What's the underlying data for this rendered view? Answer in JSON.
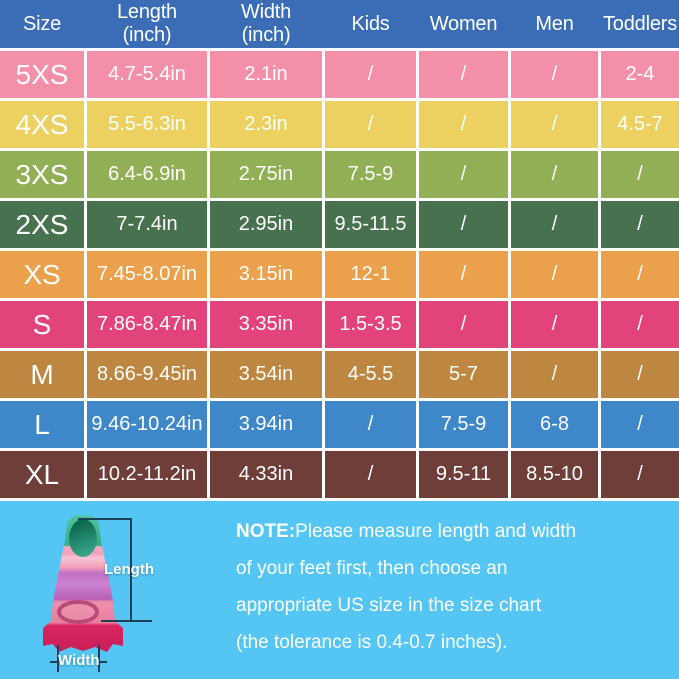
{
  "colors": {
    "header_bg": "#3A6DB6",
    "separator": "#FFFFFF",
    "bottom_bg": "#55C6F3",
    "text": "#FFFFFF"
  },
  "table": {
    "headers": [
      "Size",
      "Length\n(inch)",
      "Width\n(inch)",
      "Kids",
      "Women",
      "Men",
      "Toddlers"
    ],
    "header_keys": [
      "size",
      "length",
      "width",
      "kids",
      "women",
      "men",
      "toddlers"
    ],
    "rows": [
      {
        "size": "5XS",
        "color": "#F48FA9",
        "cells": [
          "4.7-5.4in",
          "2.1in",
          "/",
          "/",
          "/",
          "2-4"
        ]
      },
      {
        "size": "4XS",
        "color": "#EDD160",
        "cells": [
          "5.5-6.3in",
          "2.3in",
          "/",
          "/",
          "/",
          "4.5-7"
        ]
      },
      {
        "size": "3XS",
        "color": "#92AF55",
        "cells": [
          "6.4-6.9in",
          "2.75in",
          "7.5-9",
          "/",
          "/",
          "/"
        ]
      },
      {
        "size": "2XS",
        "color": "#48714F",
        "cells": [
          "7-7.4in",
          "2.95in",
          "9.5-11.5",
          "/",
          "/",
          "/"
        ]
      },
      {
        "size": "XS",
        "color": "#EBA04B",
        "cells": [
          "7.45-8.07in",
          "3.15in",
          "12-1",
          "/",
          "/",
          "/"
        ]
      },
      {
        "size": "S",
        "color": "#E2437B",
        "cells": [
          "7.86-8.47in",
          "3.35in",
          "1.5-3.5",
          "/",
          "/",
          "/"
        ]
      },
      {
        "size": "M",
        "color": "#BD8742",
        "cells": [
          "8.66-9.45in",
          "3.54in",
          "4-5.5",
          "5-7",
          "/",
          "/"
        ]
      },
      {
        "size": "L",
        "color": "#3E87C9",
        "cells": [
          "9.46-10.24in",
          "3.94in",
          "/",
          "7.5-9",
          "6-8",
          "/"
        ]
      },
      {
        "size": "XL",
        "color": "#6F3E39",
        "cells": [
          "10.2-11.2in",
          "4.33in",
          "/",
          "9.5-11",
          "8.5-10",
          "/"
        ]
      }
    ]
  },
  "chart_data": {
    "type": "table",
    "title": "Swim fin size chart",
    "columns": [
      "Size",
      "Length (inch)",
      "Width (inch)",
      "Kids",
      "Women",
      "Men",
      "Toddlers"
    ],
    "rows": [
      [
        "5XS",
        "4.7-5.4in",
        "2.1in",
        "/",
        "/",
        "/",
        "2-4"
      ],
      [
        "4XS",
        "5.5-6.3in",
        "2.3in",
        "/",
        "/",
        "/",
        "4.5-7"
      ],
      [
        "3XS",
        "6.4-6.9in",
        "2.75in",
        "7.5-9",
        "/",
        "/",
        "/"
      ],
      [
        "2XS",
        "7-7.4in",
        "2.95in",
        "9.5-11.5",
        "/",
        "/",
        "/"
      ],
      [
        "XS",
        "7.45-8.07in",
        "3.15in",
        "12-1",
        "/",
        "/",
        "/"
      ],
      [
        "S",
        "7.86-8.47in",
        "3.35in",
        "1.5-3.5",
        "/",
        "/",
        "/"
      ],
      [
        "M",
        "8.66-9.45in",
        "3.54in",
        "4-5.5",
        "5-7",
        "/",
        "/"
      ],
      [
        "L",
        "9.46-10.24in",
        "3.94in",
        "/",
        "7.5-9",
        "6-8",
        "/"
      ],
      [
        "XL",
        "10.2-11.2in",
        "4.33in",
        "/",
        "9.5-11",
        "8.5-10",
        "/"
      ]
    ]
  },
  "figure": {
    "length_label": "Length",
    "width_label": "Width"
  },
  "note": {
    "bold": "NOTE:",
    "line1": "Please measure length and width",
    "line2": "of your feet first, then choose an",
    "line3": "appropriate US size in the size chart",
    "line4": "(the tolerance is 0.4-0.7 inches)."
  }
}
